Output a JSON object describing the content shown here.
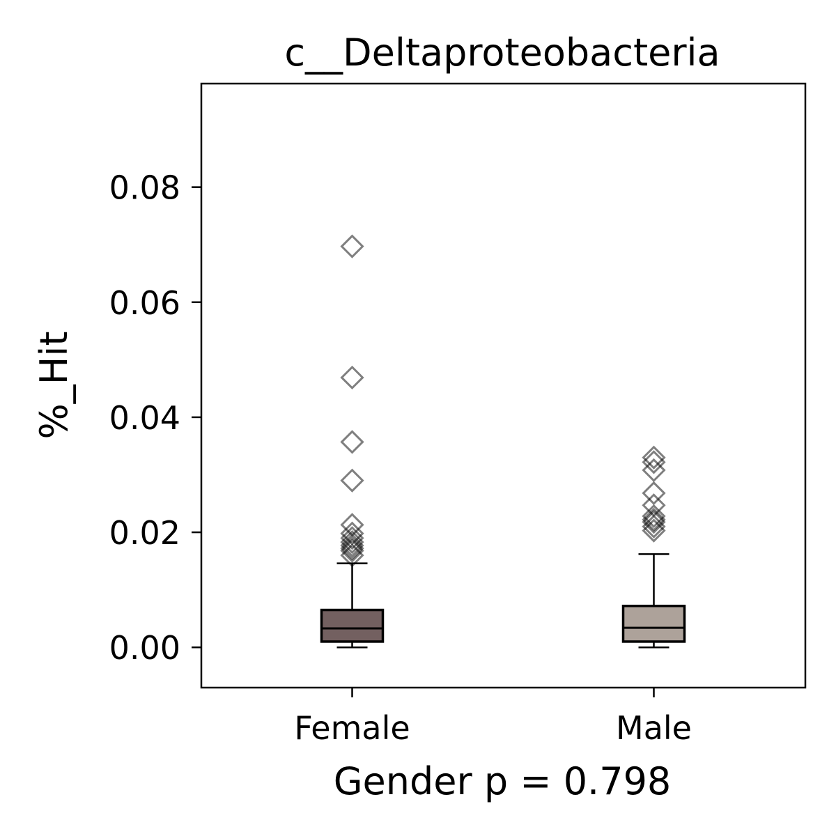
{
  "chart_data": {
    "type": "box",
    "title": "c__Deltaproteobacteria",
    "xlabel": "Gender p = 0.798",
    "ylabel": "%_Hit",
    "ylim": [
      -0.007,
      0.098
    ],
    "yticks": [
      {
        "value": 0.0,
        "label": "0.00"
      },
      {
        "value": 0.02,
        "label": "0.02"
      },
      {
        "value": 0.04,
        "label": "0.04"
      },
      {
        "value": 0.06,
        "label": "0.06"
      },
      {
        "value": 0.08,
        "label": "0.08"
      }
    ],
    "grid": false,
    "legend": "none",
    "categories": [
      "Female",
      "Male"
    ],
    "boxes": [
      {
        "category": "Female",
        "color": "#736060",
        "whisker_low": 0.0,
        "q1": 0.001,
        "median": 0.0033,
        "q3": 0.0065,
        "whisker_high": 0.0146,
        "outliers": [
          0.0697,
          0.0469,
          0.0357,
          0.029,
          0.0213,
          0.0198,
          0.019,
          0.0183,
          0.0177,
          0.0172,
          0.0168,
          0.016
        ]
      },
      {
        "category": "Male",
        "color": "#ada29a",
        "whisker_low": 0.0,
        "q1": 0.001,
        "median": 0.0034,
        "q3": 0.0072,
        "whisker_high": 0.0162,
        "outliers": [
          0.033,
          0.0322,
          0.0308,
          0.0268,
          0.0247,
          0.0228,
          0.0222,
          0.0218,
          0.021,
          0.0203
        ]
      }
    ]
  }
}
